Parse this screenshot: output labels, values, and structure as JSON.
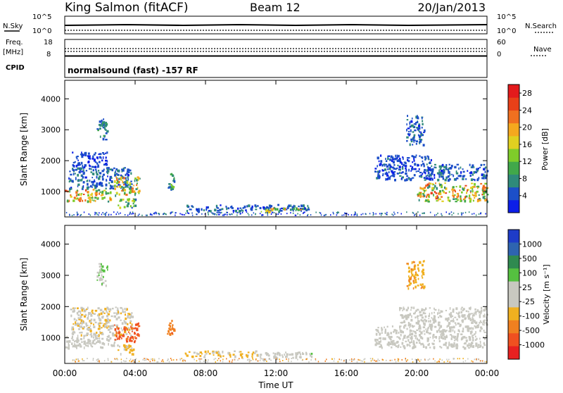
{
  "header": {
    "station": "King Salmon (fitACF)",
    "beam": "Beam 12",
    "date": "20/Jan/2013"
  },
  "noise_panel": {
    "left_top_label": "N.Sky",
    "left_ticks": [
      "10^5",
      "10^0"
    ],
    "right_label": "N.Search",
    "right_ticks": [
      "10^5",
      "10^0"
    ]
  },
  "freq_panel": {
    "left_label_1": "Freq.",
    "left_label_2": "[MHz]",
    "left_ticks": [
      "18",
      "8"
    ],
    "right_label": "Nave",
    "right_ticks": [
      "60",
      "0"
    ]
  },
  "cpid_panel": {
    "label": "CPID",
    "text": "normalsound (fast) -157 RF"
  },
  "x_axis": {
    "ticks": [
      "00:00",
      "04:00",
      "08:00",
      "12:00",
      "16:00",
      "20:00",
      "00:00"
    ],
    "label": "Time UT"
  },
  "chart_data": [
    {
      "type": "heatmap",
      "name": "power-panel",
      "ylabel": "Slant Range [km]",
      "yticks": [
        "1000",
        "2000",
        "3000",
        "4000"
      ],
      "ylim": [
        180,
        4600
      ],
      "xlim": [
        0,
        24
      ],
      "colorbar": {
        "label": "Power [dB]",
        "ticks": [
          "4",
          "8",
          "12",
          "16",
          "20",
          "24",
          "28"
        ],
        "range": [
          0,
          30
        ],
        "colors": [
          "#0c1ee8",
          "#1c4fc8",
          "#2f8a7a",
          "#41a84a",
          "#7fcc2a",
          "#e0d020",
          "#f5a81e",
          "#f07020",
          "#e84018",
          "#e31a1c"
        ]
      },
      "regions": [
        {
          "t": [
            0.0,
            2.6
          ],
          "r": [
            700,
            1100
          ],
          "level": 20
        },
        {
          "t": [
            0.2,
            3.8
          ],
          "r": [
            1100,
            1800
          ],
          "level": 6
        },
        {
          "t": [
            0.4,
            2.4
          ],
          "r": [
            1800,
            2300
          ],
          "level": 4
        },
        {
          "t": [
            1.8,
            2.4
          ],
          "r": [
            2700,
            3400
          ],
          "level": 8
        },
        {
          "t": [
            2.8,
            4.2
          ],
          "r": [
            900,
            1500
          ],
          "level": 18
        },
        {
          "t": [
            3.0,
            4.0
          ],
          "r": [
            500,
            800
          ],
          "level": 12
        },
        {
          "t": [
            5.8,
            6.2
          ],
          "r": [
            1100,
            1600
          ],
          "level": 10
        },
        {
          "t": [
            6.8,
            14.0
          ],
          "r": [
            400,
            600
          ],
          "level": 6
        },
        {
          "t": [
            11.0,
            13.5
          ],
          "r": [
            350,
            500
          ],
          "level": 18
        },
        {
          "t": [
            17.6,
            20.8
          ],
          "r": [
            1400,
            2200
          ],
          "level": 5
        },
        {
          "t": [
            19.4,
            20.4
          ],
          "r": [
            2500,
            3500
          ],
          "level": 6
        },
        {
          "t": [
            20.0,
            24.0
          ],
          "r": [
            700,
            1300
          ],
          "level": 20
        },
        {
          "t": [
            20.6,
            24.0
          ],
          "r": [
            1400,
            1900
          ],
          "level": 6
        }
      ]
    },
    {
      "type": "heatmap",
      "name": "velocity-panel",
      "ylabel": "Slant Range [km]",
      "yticks": [
        "1000",
        "2000",
        "3000",
        "4000"
      ],
      "ylim": [
        180,
        4600
      ],
      "xlim": [
        0,
        24
      ],
      "colorbar": {
        "label": "Velocity [m s⁻¹]",
        "ticks": [
          "1000",
          "500",
          "100",
          "25",
          "-25",
          "-100",
          "-500",
          "-1000"
        ],
        "colors": [
          "#1e3cc8",
          "#2e64b0",
          "#2f8a50",
          "#55c040",
          "#c8c8c0",
          "#c8c8c0",
          "#f0b020",
          "#f08020",
          "#f05020",
          "#e82020"
        ]
      },
      "regions": [
        {
          "t": [
            0.0,
            3.0
          ],
          "r": [
            700,
            1100
          ],
          "v": 0
        },
        {
          "t": [
            0.3,
            3.8
          ],
          "r": [
            1100,
            2000
          ],
          "v": -200
        },
        {
          "t": [
            1.8,
            2.4
          ],
          "r": [
            2700,
            3400
          ],
          "v": 200
        },
        {
          "t": [
            2.8,
            4.2
          ],
          "r": [
            900,
            1500
          ],
          "v": -800
        },
        {
          "t": [
            3.0,
            4.0
          ],
          "r": [
            500,
            800
          ],
          "v": -300
        },
        {
          "t": [
            5.8,
            6.2
          ],
          "r": [
            1100,
            1600
          ],
          "v": -600
        },
        {
          "t": [
            6.8,
            11.0
          ],
          "r": [
            400,
            600
          ],
          "v": -300
        },
        {
          "t": [
            11.0,
            13.0
          ],
          "r": [
            330,
            560
          ],
          "v": 0
        },
        {
          "t": [
            13.0,
            14.0
          ],
          "r": [
            400,
            600
          ],
          "v": 150
        },
        {
          "t": [
            17.6,
            24.0
          ],
          "r": [
            700,
            1400
          ],
          "v": 0
        },
        {
          "t": [
            19.4,
            20.4
          ],
          "r": [
            2600,
            3500
          ],
          "v": -400
        },
        {
          "t": [
            19.0,
            24.0
          ],
          "r": [
            1400,
            2000
          ],
          "v": 0
        }
      ]
    }
  ]
}
